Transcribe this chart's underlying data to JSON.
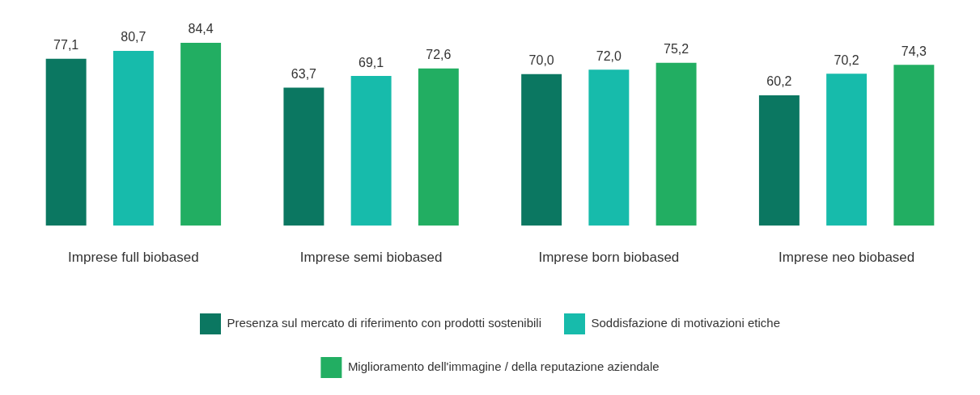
{
  "chart_data": {
    "type": "bar",
    "categories": [
      "Imprese full biobased",
      "Imprese semi biobased",
      "Imprese born biobased",
      "Imprese neo biobased"
    ],
    "series": [
      {
        "name": "Presenza sul mercato di riferimento con prodotti sostenibili",
        "color": "#0b7761",
        "values": [
          77.1,
          63.7,
          70.0,
          60.2
        ],
        "value_labels": [
          "77,1",
          "63,7",
          "70,0",
          "60,2"
        ]
      },
      {
        "name": "Soddisfazione di motivazioni etiche",
        "color": "#17bbab",
        "values": [
          80.7,
          69.1,
          72.0,
          70.2
        ],
        "value_labels": [
          "80,7",
          "69,1",
          "72,0",
          "70,2"
        ]
      },
      {
        "name": "Miglioramento dell'immagine / della reputazione aziendale",
        "color": "#22ae62",
        "values": [
          84.4,
          72.6,
          75.2,
          74.3
        ],
        "value_labels": [
          "84,4",
          "72,6",
          "75,2",
          "74,3"
        ]
      }
    ],
    "legend": "bottom",
    "grid": false
  }
}
